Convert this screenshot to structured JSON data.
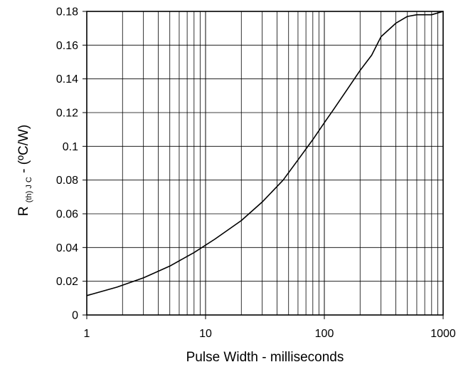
{
  "chart_data": {
    "type": "line",
    "title": "",
    "xlabel": "Pulse Width - milliseconds",
    "ylabel": {
      "main": "R",
      "subscript": "(th) J C",
      "unit": " - (ºC/W)"
    },
    "xscale": "log",
    "xlim": [
      1,
      1000
    ],
    "ylim": [
      0,
      0.18
    ],
    "grid": true,
    "x_ticks": [
      "1",
      "10",
      "100",
      "1000"
    ],
    "y_ticks": [
      "0",
      "0.02",
      "0.04",
      "0.06",
      "0.08",
      "0.1",
      "0.12",
      "0.14",
      "0.16",
      "0.18"
    ],
    "series": [
      {
        "name": "",
        "x": [
          1,
          1.8,
          3,
          5,
          8,
          12,
          20,
          30,
          45,
          60,
          80,
          100,
          120,
          150,
          200,
          250,
          300,
          400,
          500,
          600,
          700,
          800,
          1000
        ],
        "y": [
          0.0115,
          0.0165,
          0.022,
          0.029,
          0.037,
          0.045,
          0.056,
          0.067,
          0.08,
          0.092,
          0.104,
          0.114,
          0.122,
          0.132,
          0.145,
          0.154,
          0.165,
          0.173,
          0.177,
          0.178,
          0.178,
          0.178,
          0.18
        ],
        "color": "#000000"
      }
    ]
  }
}
